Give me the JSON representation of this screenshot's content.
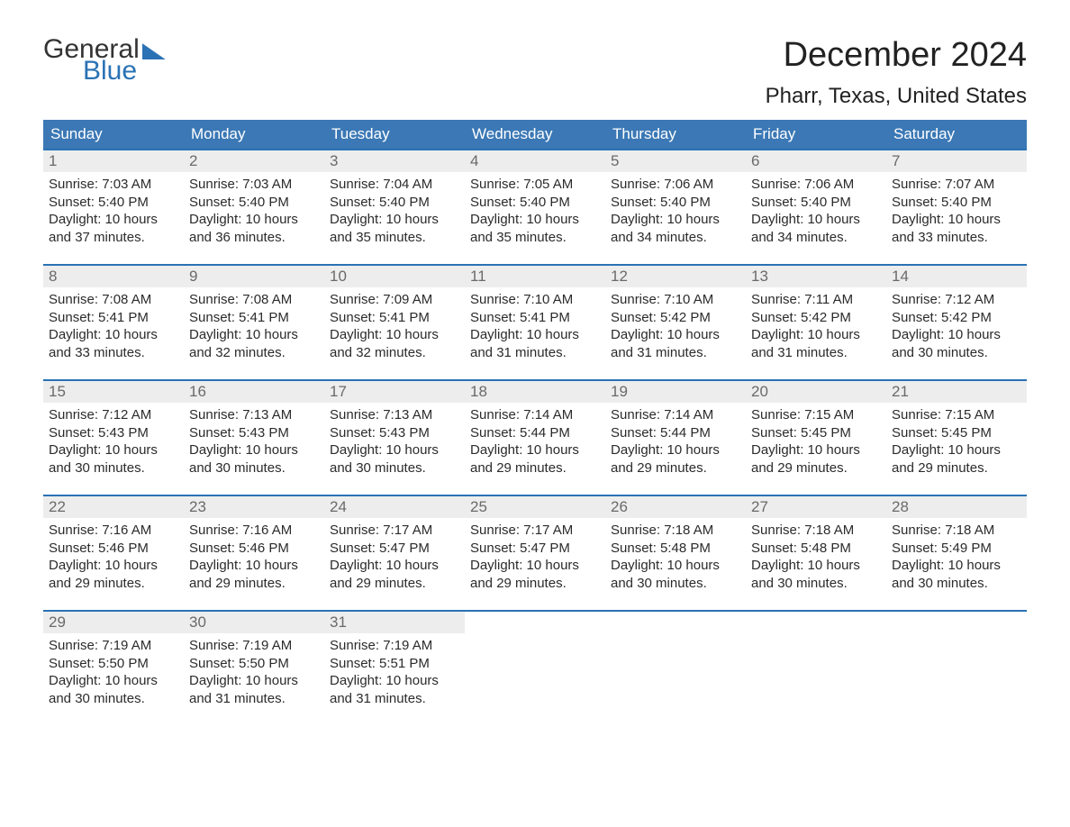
{
  "logo": {
    "word1": "General",
    "word2": "Blue"
  },
  "title": "December 2024",
  "location": "Pharr, Texas, United States",
  "colors": {
    "brand_blue": "#2a72b5",
    "header_blue": "#3b78b5",
    "daynum_bg": "#ededed",
    "daynum_fg": "#6a6a6a",
    "text": "#2b2b2b"
  },
  "weekdays": [
    "Sunday",
    "Monday",
    "Tuesday",
    "Wednesday",
    "Thursday",
    "Friday",
    "Saturday"
  ],
  "days": [
    {
      "n": "1",
      "sunrise": "7:03 AM",
      "sunset": "5:40 PM",
      "dl1": "Daylight: 10 hours",
      "dl2": "and 37 minutes."
    },
    {
      "n": "2",
      "sunrise": "7:03 AM",
      "sunset": "5:40 PM",
      "dl1": "Daylight: 10 hours",
      "dl2": "and 36 minutes."
    },
    {
      "n": "3",
      "sunrise": "7:04 AM",
      "sunset": "5:40 PM",
      "dl1": "Daylight: 10 hours",
      "dl2": "and 35 minutes."
    },
    {
      "n": "4",
      "sunrise": "7:05 AM",
      "sunset": "5:40 PM",
      "dl1": "Daylight: 10 hours",
      "dl2": "and 35 minutes."
    },
    {
      "n": "5",
      "sunrise": "7:06 AM",
      "sunset": "5:40 PM",
      "dl1": "Daylight: 10 hours",
      "dl2": "and 34 minutes."
    },
    {
      "n": "6",
      "sunrise": "7:06 AM",
      "sunset": "5:40 PM",
      "dl1": "Daylight: 10 hours",
      "dl2": "and 34 minutes."
    },
    {
      "n": "7",
      "sunrise": "7:07 AM",
      "sunset": "5:40 PM",
      "dl1": "Daylight: 10 hours",
      "dl2": "and 33 minutes."
    },
    {
      "n": "8",
      "sunrise": "7:08 AM",
      "sunset": "5:41 PM",
      "dl1": "Daylight: 10 hours",
      "dl2": "and 33 minutes."
    },
    {
      "n": "9",
      "sunrise": "7:08 AM",
      "sunset": "5:41 PM",
      "dl1": "Daylight: 10 hours",
      "dl2": "and 32 minutes."
    },
    {
      "n": "10",
      "sunrise": "7:09 AM",
      "sunset": "5:41 PM",
      "dl1": "Daylight: 10 hours",
      "dl2": "and 32 minutes."
    },
    {
      "n": "11",
      "sunrise": "7:10 AM",
      "sunset": "5:41 PM",
      "dl1": "Daylight: 10 hours",
      "dl2": "and 31 minutes."
    },
    {
      "n": "12",
      "sunrise": "7:10 AM",
      "sunset": "5:42 PM",
      "dl1": "Daylight: 10 hours",
      "dl2": "and 31 minutes."
    },
    {
      "n": "13",
      "sunrise": "7:11 AM",
      "sunset": "5:42 PM",
      "dl1": "Daylight: 10 hours",
      "dl2": "and 31 minutes."
    },
    {
      "n": "14",
      "sunrise": "7:12 AM",
      "sunset": "5:42 PM",
      "dl1": "Daylight: 10 hours",
      "dl2": "and 30 minutes."
    },
    {
      "n": "15",
      "sunrise": "7:12 AM",
      "sunset": "5:43 PM",
      "dl1": "Daylight: 10 hours",
      "dl2": "and 30 minutes."
    },
    {
      "n": "16",
      "sunrise": "7:13 AM",
      "sunset": "5:43 PM",
      "dl1": "Daylight: 10 hours",
      "dl2": "and 30 minutes."
    },
    {
      "n": "17",
      "sunrise": "7:13 AM",
      "sunset": "5:43 PM",
      "dl1": "Daylight: 10 hours",
      "dl2": "and 30 minutes."
    },
    {
      "n": "18",
      "sunrise": "7:14 AM",
      "sunset": "5:44 PM",
      "dl1": "Daylight: 10 hours",
      "dl2": "and 29 minutes."
    },
    {
      "n": "19",
      "sunrise": "7:14 AM",
      "sunset": "5:44 PM",
      "dl1": "Daylight: 10 hours",
      "dl2": "and 29 minutes."
    },
    {
      "n": "20",
      "sunrise": "7:15 AM",
      "sunset": "5:45 PM",
      "dl1": "Daylight: 10 hours",
      "dl2": "and 29 minutes."
    },
    {
      "n": "21",
      "sunrise": "7:15 AM",
      "sunset": "5:45 PM",
      "dl1": "Daylight: 10 hours",
      "dl2": "and 29 minutes."
    },
    {
      "n": "22",
      "sunrise": "7:16 AM",
      "sunset": "5:46 PM",
      "dl1": "Daylight: 10 hours",
      "dl2": "and 29 minutes."
    },
    {
      "n": "23",
      "sunrise": "7:16 AM",
      "sunset": "5:46 PM",
      "dl1": "Daylight: 10 hours",
      "dl2": "and 29 minutes."
    },
    {
      "n": "24",
      "sunrise": "7:17 AM",
      "sunset": "5:47 PM",
      "dl1": "Daylight: 10 hours",
      "dl2": "and 29 minutes."
    },
    {
      "n": "25",
      "sunrise": "7:17 AM",
      "sunset": "5:47 PM",
      "dl1": "Daylight: 10 hours",
      "dl2": "and 29 minutes."
    },
    {
      "n": "26",
      "sunrise": "7:18 AM",
      "sunset": "5:48 PM",
      "dl1": "Daylight: 10 hours",
      "dl2": "and 30 minutes."
    },
    {
      "n": "27",
      "sunrise": "7:18 AM",
      "sunset": "5:48 PM",
      "dl1": "Daylight: 10 hours",
      "dl2": "and 30 minutes."
    },
    {
      "n": "28",
      "sunrise": "7:18 AM",
      "sunset": "5:49 PM",
      "dl1": "Daylight: 10 hours",
      "dl2": "and 30 minutes."
    },
    {
      "n": "29",
      "sunrise": "7:19 AM",
      "sunset": "5:50 PM",
      "dl1": "Daylight: 10 hours",
      "dl2": "and 30 minutes."
    },
    {
      "n": "30",
      "sunrise": "7:19 AM",
      "sunset": "5:50 PM",
      "dl1": "Daylight: 10 hours",
      "dl2": "and 31 minutes."
    },
    {
      "n": "31",
      "sunrise": "7:19 AM",
      "sunset": "5:51 PM",
      "dl1": "Daylight: 10 hours",
      "dl2": "and 31 minutes."
    }
  ],
  "labels": {
    "sunrise": "Sunrise: ",
    "sunset": "Sunset: "
  },
  "start_offset": 0,
  "total_cells": 35
}
